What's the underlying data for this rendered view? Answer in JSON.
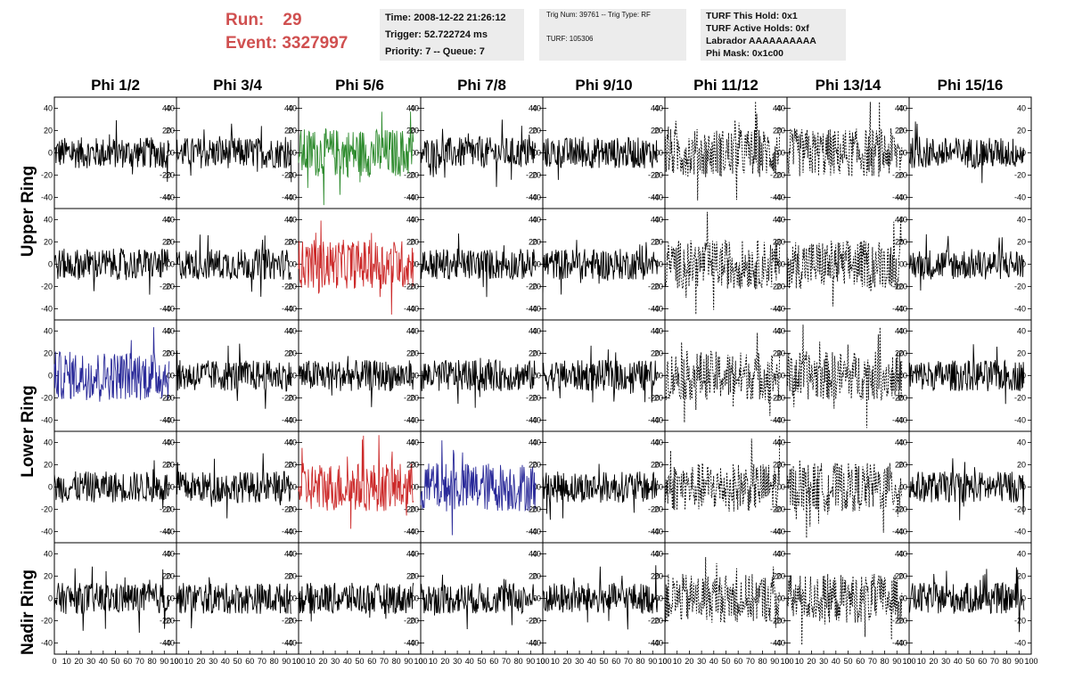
{
  "header": {
    "run_label": "Run:",
    "run_value": "29",
    "event_label": "Event:",
    "event_value": "3327997"
  },
  "time_box": {
    "time": "Time: 2008-12-22 21:26:12",
    "trigger": "Trigger: 52.722724 ms",
    "priority": "Priority: 7 -- Queue: 7"
  },
  "trig_box": {
    "trig": "Trig Num: 39761 -- Trig Type: RF",
    "turf": "TURF: 105306"
  },
  "turf_box": {
    "this_hold": "TURF This Hold: 0x1",
    "active_holds": "TURF Active Holds: 0xf",
    "labrador": "Labrador AAAAAAAAAA",
    "phi_mask": "Phi Mask: 0x1c00"
  },
  "columns": [
    "Phi 1/2",
    "Phi 3/4",
    "Phi 5/6",
    "Phi 7/8",
    "Phi 9/10",
    "Phi 11/12",
    "Phi 13/14",
    "Phi 15/16"
  ],
  "rings": [
    "Upper Ring",
    "Lower Ring",
    "Nadir Ring"
  ],
  "chart_data": {
    "type": "line",
    "xlim": [
      0,
      100
    ],
    "ylim": [
      -50,
      50
    ],
    "x_ticks": [
      "0",
      "10",
      "20",
      "30",
      "40",
      "50",
      "60",
      "70",
      "80",
      "90",
      "100"
    ],
    "y_ticks": [
      "40",
      "20",
      "0",
      "-20",
      "-40"
    ],
    "rows": 5,
    "cols": 8,
    "highlights": [
      {
        "row": 0,
        "col": 2,
        "color": "#2e8b2e"
      },
      {
        "row": 1,
        "col": 2,
        "color": "#cc2a2a"
      },
      {
        "row": 2,
        "col": 0,
        "color": "#2a2a99"
      },
      {
        "row": 3,
        "col": 2,
        "color": "#cc2a2a"
      },
      {
        "row": 3,
        "col": 3,
        "color": "#2a2a99"
      }
    ],
    "dotted_columns": [
      5,
      6
    ],
    "default_color": "#000000"
  }
}
